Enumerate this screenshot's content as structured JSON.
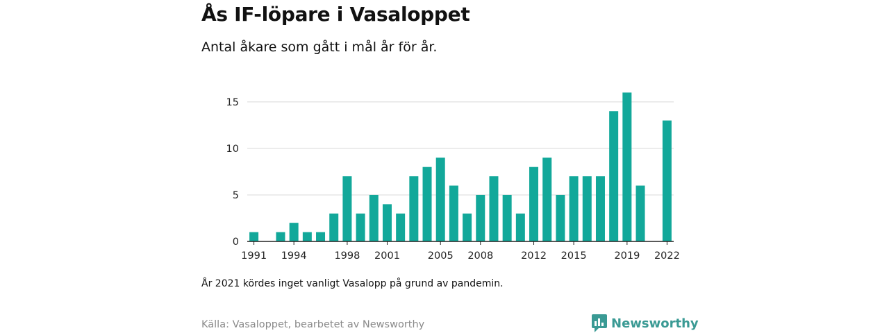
{
  "header": {
    "title": "Ås IF-löpare i Vasaloppet",
    "subtitle": "Antal åkare som gått i mål år för år."
  },
  "footer": {
    "note": "År 2021 kördes inget vanligt Vasalopp på grund av pandemin.",
    "source": "Källa: Vasaloppet, bearbetet av Newsworthy",
    "brand": "Newsworthy"
  },
  "colors": {
    "bar": "#12a89a",
    "grid": "#d9d9d9",
    "axis": "#222222",
    "brand": "#3a9a94"
  },
  "icons": {
    "brand_logo": "newsworthy-logo-icon"
  },
  "chart_data": {
    "type": "bar",
    "x": [
      1991,
      1992,
      1993,
      1994,
      1995,
      1996,
      1997,
      1998,
      1999,
      2000,
      2001,
      2002,
      2003,
      2004,
      2005,
      2006,
      2007,
      2008,
      2009,
      2010,
      2011,
      2012,
      2013,
      2014,
      2015,
      2016,
      2017,
      2018,
      2019,
      2020,
      2021,
      2022
    ],
    "values": [
      1,
      0,
      1,
      2,
      1,
      1,
      3,
      7,
      3,
      5,
      4,
      3,
      7,
      8,
      9,
      6,
      3,
      5,
      7,
      5,
      3,
      8,
      9,
      5,
      7,
      7,
      7,
      14,
      16,
      6,
      0,
      13
    ],
    "xticks": [
      1991,
      1994,
      1998,
      2001,
      2005,
      2008,
      2012,
      2015,
      2019,
      2022
    ],
    "yticks": [
      0,
      5,
      10,
      15
    ],
    "ylim": [
      0,
      17
    ],
    "title": "Ås IF-löpare i Vasaloppet",
    "xlabel": "",
    "ylabel": "",
    "grid": true
  }
}
